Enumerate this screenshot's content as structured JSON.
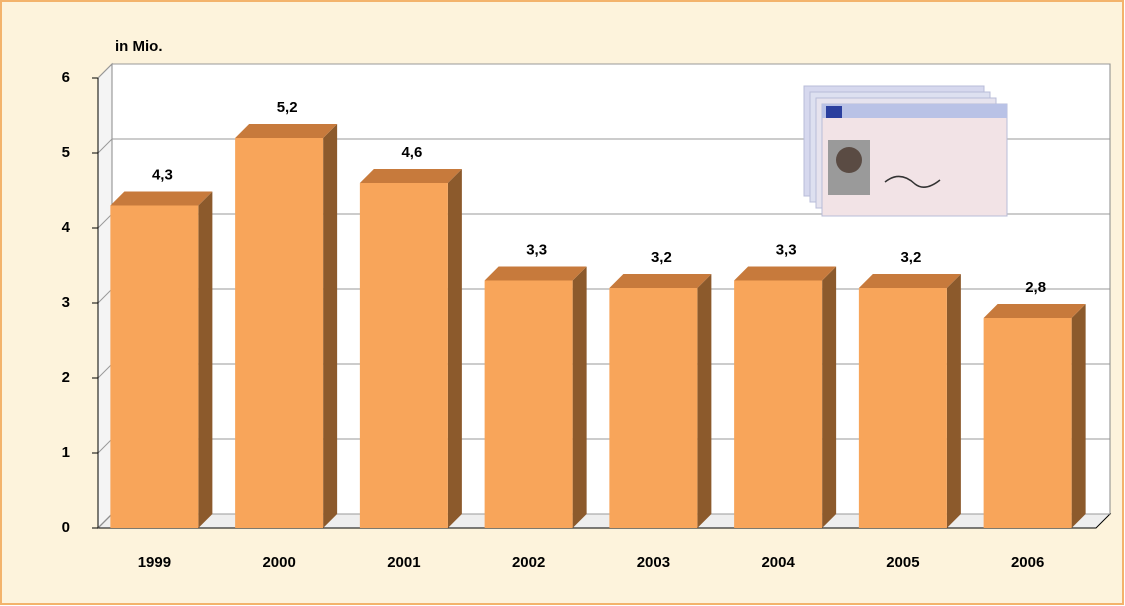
{
  "chart_data": {
    "type": "bar3d",
    "ylabel": "in Mio.",
    "categories": [
      "1999",
      "2000",
      "2001",
      "2002",
      "2003",
      "2004",
      "2005",
      "2006"
    ],
    "values": [
      4.3,
      5.2,
      4.6,
      3.3,
      3.2,
      3.3,
      3.2,
      2.8
    ],
    "value_labels": [
      "4,3",
      "5,2",
      "4,6",
      "3,3",
      "3,2",
      "3,3",
      "3,2",
      "2,8"
    ],
    "color": "#f8a55a",
    "ylim": [
      0,
      6
    ],
    "yticks": [
      0,
      1,
      2,
      3,
      4,
      5,
      6
    ],
    "grid": true
  }
}
